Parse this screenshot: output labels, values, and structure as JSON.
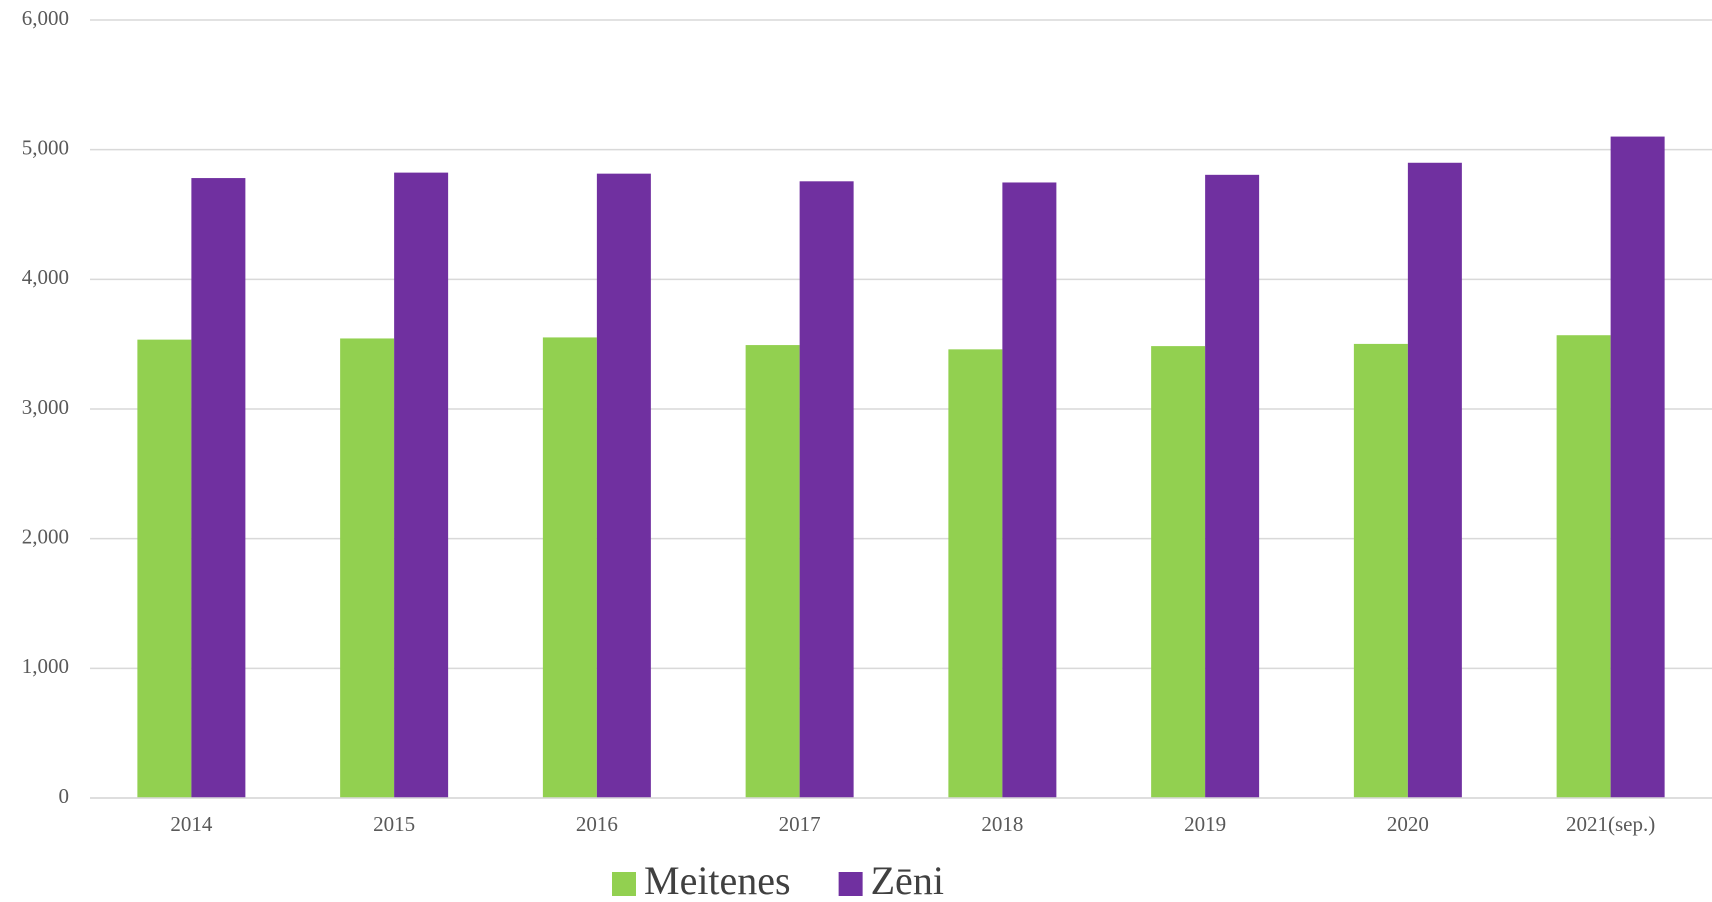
{
  "chart_data": {
    "type": "bar",
    "categories": [
      "2014",
      "2015",
      "2016",
      "2017",
      "2018",
      "2019",
      "2020",
      "2021(sep.)"
    ],
    "series": [
      {
        "name": "Meitenes",
        "color": "#92d050",
        "values": [
          3535,
          3544,
          3552,
          3493,
          3460,
          3485,
          3502,
          3569
        ]
      },
      {
        "name": "Zēni",
        "color": "#7030a0",
        "values": [
          4781,
          4823,
          4815,
          4756,
          4747,
          4806,
          4899,
          5101
        ]
      }
    ],
    "ylim": [
      0,
      6000
    ],
    "yticks": [
      0,
      {
        "value": 1000,
        "label": "1,000"
      },
      {
        "value": 2000,
        "label": "2,000"
      },
      {
        "value": 3000,
        "label": "3,000"
      },
      {
        "value": 4000,
        "label": "4,000"
      },
      {
        "value": 5000,
        "label": "5,000"
      },
      {
        "value": 6000,
        "label": "6,000"
      }
    ],
    "grid": true,
    "legend": "bottom"
  }
}
